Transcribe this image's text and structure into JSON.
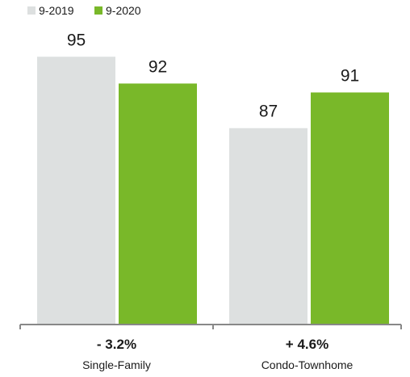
{
  "chart_data": {
    "type": "bar",
    "categories": [
      "Single-Family",
      "Condo-Townhome"
    ],
    "series": [
      {
        "name": "9-2019",
        "values": [
          95,
          87
        ],
        "color": "#dde0e0"
      },
      {
        "name": "9-2020",
        "values": [
          92,
          91
        ],
        "color": "#79b829"
      }
    ],
    "changes": [
      "- 3.2%",
      "+ 4.6%"
    ],
    "ylim": [
      65,
      100
    ],
    "legend_position": "top-left",
    "grid": false,
    "axis_color": "#888888"
  }
}
